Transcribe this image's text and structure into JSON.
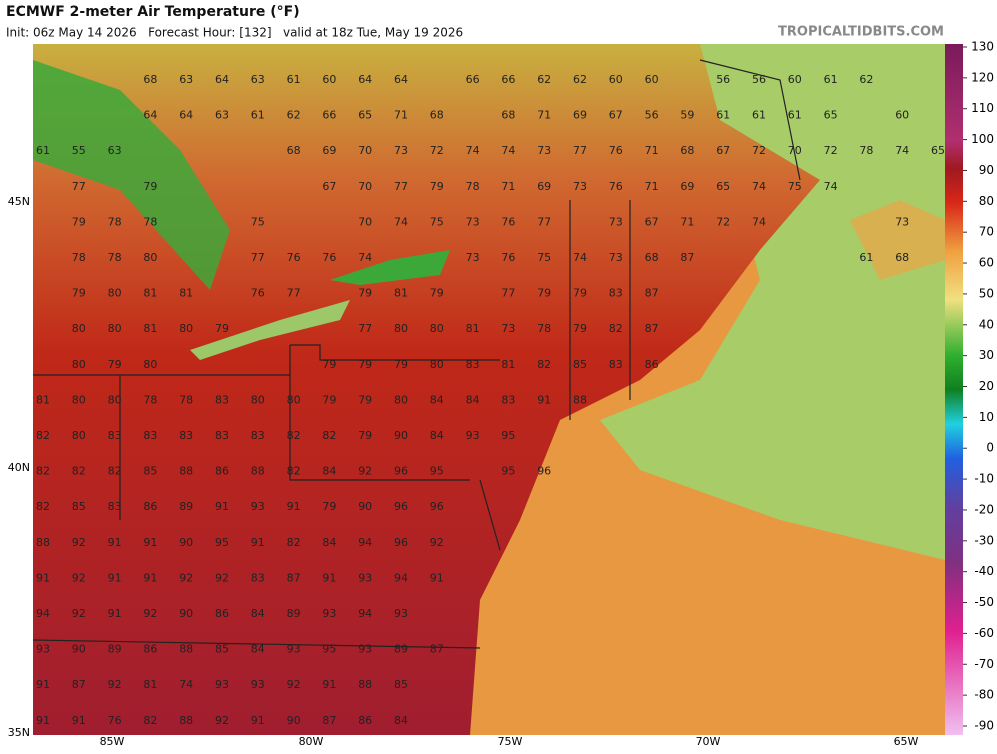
{
  "header": {
    "title": "ECMWF 2-meter Air Temperature (°F)",
    "subtitle": "Init: 06z May 14 2026   Forecast Hour: [132]   valid at 18z Tue, May 19 2026",
    "brand": "TROPICALTIDBITS.COM"
  },
  "colorbar": {
    "ticks": [
      130,
      120,
      110,
      100,
      90,
      80,
      70,
      60,
      50,
      40,
      30,
      20,
      10,
      0,
      -10,
      -20,
      -30,
      -40,
      -50,
      -60,
      -70,
      -80,
      -90
    ]
  },
  "latitude_labels": [
    "45N",
    "40N",
    "35N"
  ],
  "longitude_labels": [
    "85W",
    "80W",
    "75W",
    "70W",
    "65W"
  ],
  "station_rows": [
    [
      68,
      63,
      64,
      63,
      61,
      60,
      64,
      64,
      66,
      66,
      62,
      62,
      60,
      60,
      56,
      56,
      60,
      61,
      62
    ],
    [
      64,
      64,
      63,
      61,
      62,
      66,
      65,
      71,
      68,
      68,
      71,
      69,
      67,
      56,
      59,
      61,
      61,
      61,
      65,
      60
    ],
    [
      61,
      55,
      63,
      68,
      69,
      70,
      73,
      72,
      74,
      74,
      73,
      77,
      76,
      71,
      68,
      67,
      72,
      70,
      72,
      78,
      74,
      65
    ],
    [
      77,
      79,
      67,
      70,
      77,
      79,
      78,
      71,
      69,
      73,
      76,
      71,
      69,
      65,
      74,
      75,
      74
    ],
    [
      79,
      78,
      78,
      75,
      70,
      74,
      75,
      73,
      76,
      77,
      73,
      67,
      71,
      72,
      74,
      73
    ],
    [
      78,
      78,
      80,
      77,
      76,
      76,
      74,
      73,
      76,
      75,
      74,
      73,
      68,
      87,
      61,
      68
    ],
    [
      79,
      80,
      81,
      81,
      76,
      77,
      79,
      81,
      79,
      77,
      79,
      79,
      83,
      87
    ],
    [
      80,
      80,
      81,
      80,
      79,
      77,
      80,
      80,
      81,
      73,
      78,
      79,
      82,
      87
    ],
    [
      80,
      79,
      80,
      79,
      79,
      79,
      80,
      83,
      81,
      82,
      85,
      83,
      86
    ],
    [
      81,
      80,
      80,
      78,
      78,
      83,
      80,
      80,
      79,
      79,
      80,
      84,
      84,
      83,
      91,
      88
    ],
    [
      82,
      80,
      83,
      83,
      83,
      83,
      83,
      82,
      82,
      79,
      90,
      84,
      93,
      95
    ],
    [
      82,
      82,
      82,
      85,
      88,
      86,
      88,
      82,
      84,
      92,
      96,
      95,
      95,
      96
    ],
    [
      82,
      85,
      83,
      86,
      89,
      91,
      93,
      91,
      79,
      90,
      96,
      96
    ],
    [
      88,
      92,
      91,
      91,
      90,
      95,
      91,
      82,
      84,
      94,
      96,
      92
    ],
    [
      91,
      92,
      91,
      91,
      92,
      92,
      83,
      87,
      91,
      93,
      94,
      91
    ],
    [
      94,
      92,
      91,
      92,
      90,
      86,
      84,
      89,
      93,
      94,
      93
    ],
    [
      93,
      90,
      89,
      86,
      88,
      85,
      84,
      93,
      95,
      93,
      89,
      87
    ],
    [
      91,
      87,
      92,
      81,
      74,
      93,
      93,
      92,
      91,
      88,
      85
    ],
    [
      91,
      91,
      76,
      82,
      88,
      92,
      91,
      90,
      87,
      86,
      84
    ]
  ]
}
